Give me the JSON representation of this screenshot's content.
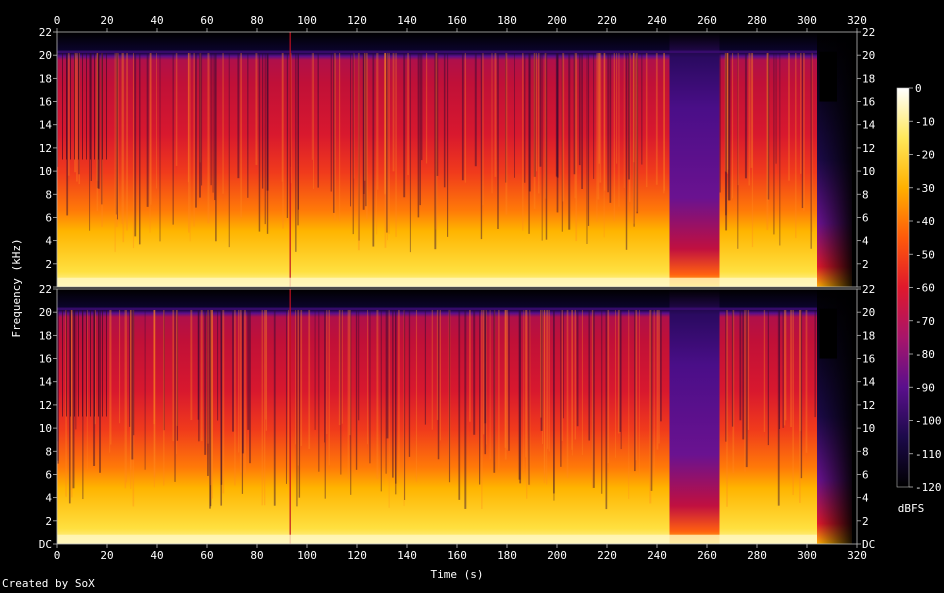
{
  "credit": "Created by SoX",
  "chart_data": {
    "type": "heatmap",
    "subtype": "spectrogram",
    "channels": 2,
    "xlabel": "Time (s)",
    "ylabel": "Frequency (kHz)",
    "xlim": [
      0,
      320
    ],
    "ylim": [
      0,
      22
    ],
    "x_ticks": [
      "0",
      "20",
      "40",
      "60",
      "80",
      "100",
      "120",
      "140",
      "160",
      "180",
      "200",
      "220",
      "240",
      "260",
      "280",
      "300",
      "320"
    ],
    "y_ticks": [
      "DC",
      "2",
      "4",
      "6",
      "8",
      "10",
      "12",
      "14",
      "16",
      "18",
      "20",
      "22"
    ],
    "colorbar": {
      "label": "dBFS",
      "range": [
        -120,
        0
      ],
      "ticks": [
        "0",
        "-10",
        "-20",
        "-30",
        "-40",
        "-50",
        "-60",
        "-70",
        "-80",
        "-90",
        "-100",
        "-110",
        "-120"
      ],
      "colormap": [
        "#000000",
        "#1c0a4a",
        "#5a0f8c",
        "#a8156a",
        "#e0182c",
        "#ff5a0a",
        "#ffb000",
        "#ffe85a",
        "#ffffff"
      ]
    },
    "features": {
      "content_upper_khz": 20,
      "signal_end_s": 304,
      "fade_end_s": 318,
      "quiet_section_s": [
        245,
        265
      ],
      "dropout_s": 93
    }
  }
}
